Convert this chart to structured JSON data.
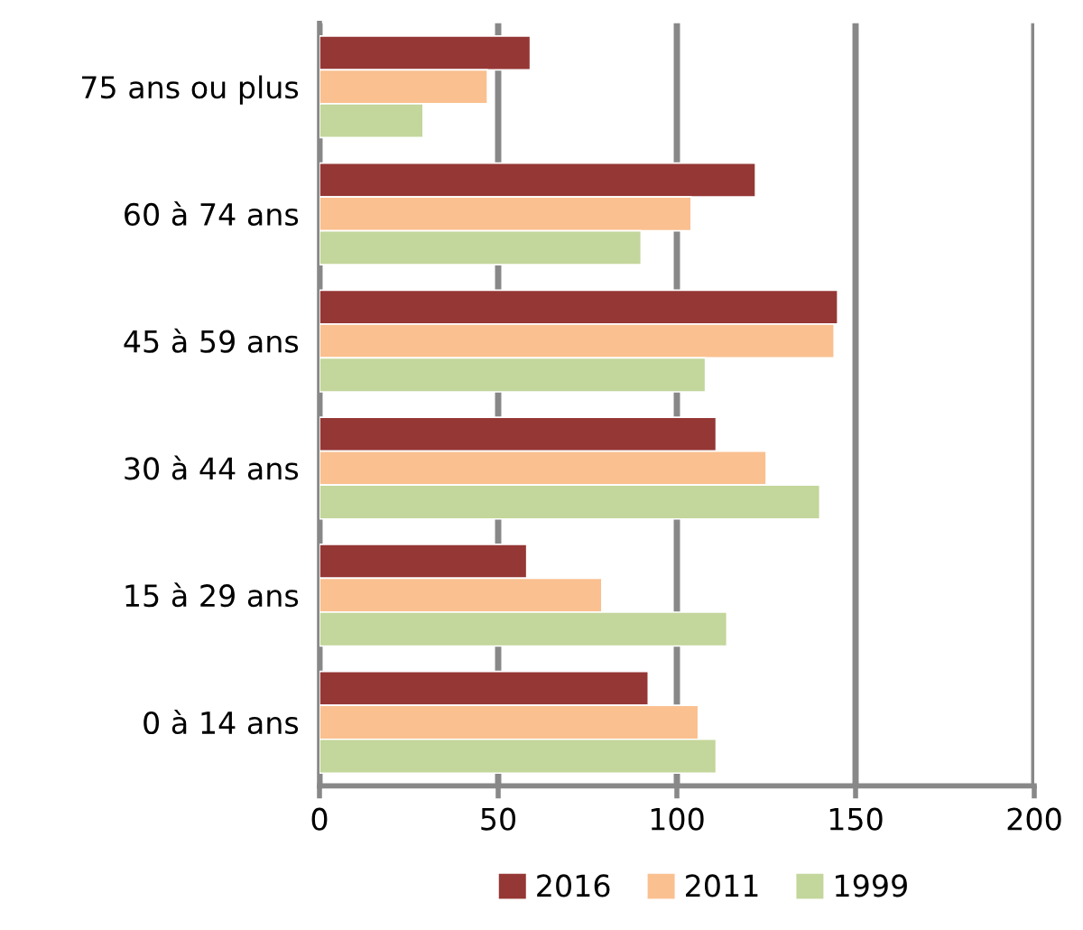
{
  "chart_data": {
    "type": "bar",
    "orientation": "horizontal",
    "categories": [
      "75 ans ou plus",
      "60 à 74 ans",
      "45 à 59 ans",
      "30 à 44 ans",
      "15 à 29 ans",
      "0 à 14 ans"
    ],
    "series": [
      {
        "name": "2016",
        "color": "#953735",
        "values": [
          59,
          122,
          145,
          111,
          58,
          92
        ]
      },
      {
        "name": "2011",
        "color": "#fac090",
        "values": [
          47,
          104,
          144,
          125,
          79,
          106
        ]
      },
      {
        "name": "1999",
        "color": "#c3d69b",
        "values": [
          29,
          90,
          108,
          140,
          114,
          111
        ]
      }
    ],
    "xlim": [
      0,
      200
    ],
    "xticks": [
      0,
      50,
      100,
      150,
      200
    ],
    "grid": "x",
    "legend": "bottom"
  }
}
